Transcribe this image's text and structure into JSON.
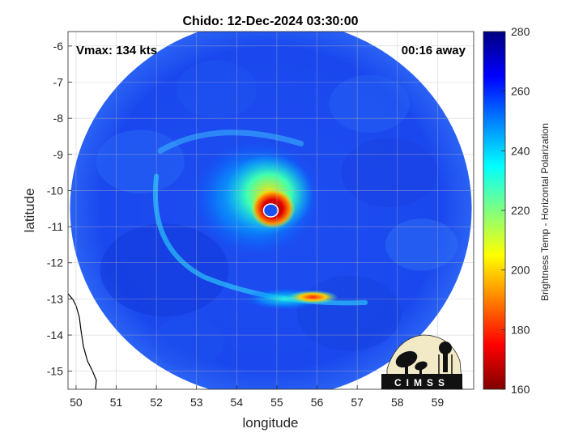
{
  "chart_data": {
    "type": "heatmap",
    "title": "Chido: 12-Dec-2024 03:30:00",
    "xlabel": "longitude",
    "ylabel": "latitude",
    "xlim": [
      49.8,
      59.9
    ],
    "ylim": [
      -15.5,
      -5.6
    ],
    "xticks": [
      50,
      51,
      52,
      53,
      54,
      55,
      56,
      57,
      58,
      59
    ],
    "yticks": [
      -6,
      -7,
      -8,
      -9,
      -10,
      -11,
      -12,
      -13,
      -14,
      -15
    ],
    "grid": true,
    "colorbar": {
      "label": "Brightness Temp - Horizontal Polarization",
      "min": 160,
      "max": 280,
      "ticks": [
        280,
        260,
        240,
        220,
        200,
        180,
        160
      ],
      "colors": [
        "#800000",
        "#ff0000",
        "#ff8000",
        "#ffff00",
        "#80ff80",
        "#00ffff",
        "#0080ff",
        "#0000ff",
        "#000080"
      ]
    },
    "annotations": {
      "vmax": "Vmax: 134 kts",
      "time_away": "00:16 away"
    },
    "storm_center": {
      "lon": 54.85,
      "lat": -10.55
    },
    "swath": {
      "center_lon": 54.85,
      "center_lat": -10.5,
      "radius_deg": 5.0,
      "background_temp": 262
    },
    "features": [
      {
        "lon": 54.85,
        "lat": -10.55,
        "radius_deg": 0.18,
        "temp": 262
      },
      {
        "lon": 54.9,
        "lat": -10.5,
        "radius_deg": 0.55,
        "temp": 168
      },
      {
        "lon": 54.8,
        "lat": -10.1,
        "radius_deg": 1.1,
        "temp": 205
      },
      {
        "lon": 54.5,
        "lat": -10.2,
        "radius_deg": 1.6,
        "temp": 235
      },
      {
        "lon": 55.9,
        "lat": -12.95,
        "radius_deg": 0.35,
        "temp": 192
      },
      {
        "lon": 55.2,
        "lat": -13.0,
        "radius_deg": 1.0,
        "temp": 238
      }
    ],
    "logo_text": "CIMSS"
  }
}
